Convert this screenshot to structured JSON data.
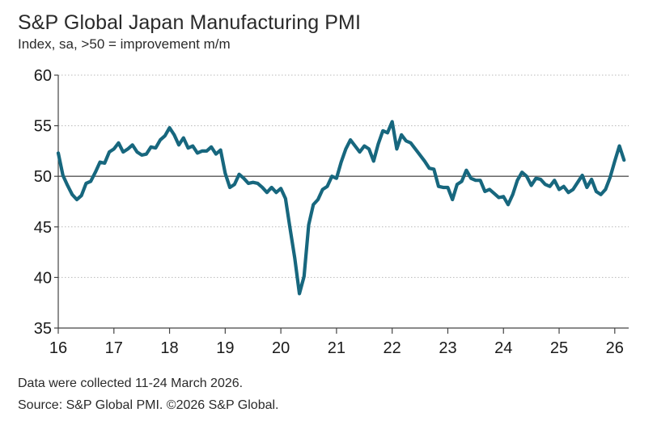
{
  "header": {
    "title": "S&P Global Japan Manufacturing PMI",
    "subtitle": "Index, sa, >50 = improvement m/m"
  },
  "footer": {
    "note": "Data were collected 11-24 March 2026.",
    "source": "Source: S&P Global PMI. ©2026 S&P Global."
  },
  "colors": {
    "line": "#17677e",
    "grid": "#b9b9b9",
    "axis": "#444444",
    "reference": "#555555"
  },
  "chart_data": {
    "type": "line",
    "title": "S&P Global Japan Manufacturing PMI",
    "ylabel": "Index, sa, >50 = improvement m/m",
    "xlabel": "",
    "ylim": [
      35,
      60
    ],
    "yticks": [
      35,
      40,
      45,
      50,
      55,
      60
    ],
    "xlim": [
      2016.0,
      2026.25
    ],
    "xticks": [
      {
        "value": 2016,
        "label": "16"
      },
      {
        "value": 2017,
        "label": "17"
      },
      {
        "value": 2018,
        "label": "18"
      },
      {
        "value": 2019,
        "label": "19"
      },
      {
        "value": 2020,
        "label": "20"
      },
      {
        "value": 2021,
        "label": "21"
      },
      {
        "value": 2022,
        "label": "22"
      },
      {
        "value": 2023,
        "label": "23"
      },
      {
        "value": 2024,
        "label": "24"
      },
      {
        "value": 2025,
        "label": "25"
      },
      {
        "value": 2026,
        "label": "26"
      }
    ],
    "reference_line": 50,
    "grid": true,
    "series": [
      {
        "name": "Japan Manufacturing PMI",
        "start": "2016-01",
        "values": [
          52.3,
          50.1,
          49.1,
          48.2,
          47.7,
          48.1,
          49.3,
          49.5,
          50.4,
          51.4,
          51.3,
          52.4,
          52.7,
          53.3,
          52.4,
          52.7,
          53.1,
          52.4,
          52.1,
          52.2,
          52.9,
          52.8,
          53.6,
          54.0,
          54.8,
          54.1,
          53.1,
          53.8,
          52.8,
          53.0,
          52.3,
          52.5,
          52.5,
          52.9,
          52.2,
          52.6,
          50.3,
          48.9,
          49.2,
          50.2,
          49.8,
          49.3,
          49.4,
          49.3,
          48.9,
          48.4,
          48.9,
          48.4,
          48.8,
          47.8,
          44.8,
          41.9,
          38.4,
          40.1,
          45.2,
          47.2,
          47.7,
          48.7,
          49.0,
          50.0,
          49.8,
          51.4,
          52.7,
          53.6,
          53.0,
          52.4,
          53.0,
          52.7,
          51.5,
          53.2,
          54.5,
          54.3,
          55.4,
          52.7,
          54.1,
          53.5,
          53.3,
          52.7,
          52.1,
          51.5,
          50.8,
          50.7,
          49.0,
          48.9,
          48.9,
          47.7,
          49.2,
          49.5,
          50.6,
          49.8,
          49.6,
          49.6,
          48.5,
          48.7,
          48.3,
          47.9,
          48.0,
          47.2,
          48.2,
          49.6,
          50.4,
          50.0,
          49.1,
          49.8,
          49.7,
          49.2,
          49.0,
          49.6,
          48.7,
          49.0,
          48.4,
          48.7,
          49.4,
          50.1,
          48.9,
          49.7,
          48.5,
          48.2,
          48.7,
          49.9,
          51.5,
          53.0,
          51.6
        ]
      }
    ]
  }
}
